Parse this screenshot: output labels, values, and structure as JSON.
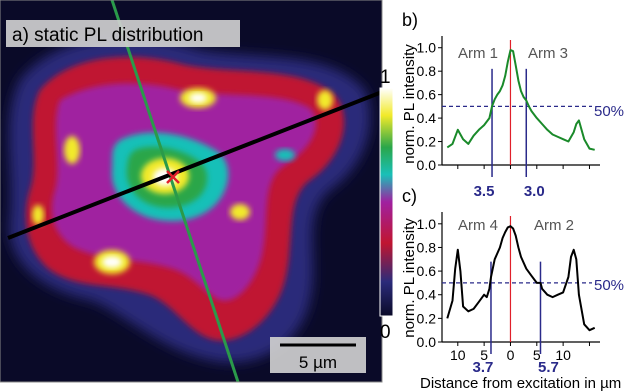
{
  "panel_a": {
    "label": "a) static PL distribution",
    "colorbar_max": "1",
    "colorbar_min": "0",
    "scalebar_label": "5 µm",
    "colormap": [
      "#0a0a28",
      "#2b2b7a",
      "#c01530",
      "#a020a0",
      "#19c0b8",
      "#2aa64a",
      "#f2ea2a",
      "#ffffff"
    ],
    "marker_color": "#e0202a",
    "line_black": "#000000",
    "line_green": "#2a9a4a"
  },
  "ylabel": "norm. PL intensity",
  "xlabel": "Distance from excitation in µm",
  "half_max_label": "50%",
  "chart_data": [
    {
      "type": "line",
      "panel": "b)",
      "arm_left": "Arm 1",
      "arm_right": "Arm 3",
      "ylabel": "norm. PL intensity",
      "yticks": [
        "0.0",
        "0.2",
        "0.4",
        "0.6",
        "0.8",
        "1.0"
      ],
      "ylim": [
        0,
        1.1
      ],
      "xlim": [
        -13,
        17
      ],
      "color": "#1a8a2a",
      "series": [
        {
          "x": [
            -12,
            -11,
            -10,
            -9,
            -8,
            -7,
            -6,
            -5,
            -4,
            -3.5,
            -3,
            -2.5,
            -2,
            -1.5,
            -1,
            -0.5,
            0,
            0.5,
            1,
            1.5,
            2,
            2.5,
            3,
            3.5,
            4,
            5,
            6,
            7,
            8,
            9,
            10,
            11,
            12,
            12.5,
            13,
            14,
            15,
            16
          ],
          "y": [
            0.15,
            0.18,
            0.3,
            0.22,
            0.18,
            0.25,
            0.3,
            0.34,
            0.4,
            0.5,
            0.56,
            0.6,
            0.63,
            0.68,
            0.76,
            0.88,
            0.98,
            0.97,
            0.85,
            0.72,
            0.63,
            0.58,
            0.55,
            0.5,
            0.46,
            0.4,
            0.35,
            0.3,
            0.26,
            0.24,
            0.22,
            0.2,
            0.28,
            0.35,
            0.38,
            0.22,
            0.14,
            0.13
          ]
        }
      ],
      "fwhm_left": "3.5",
      "fwhm_right": "3.0",
      "fwhm_x": [
        -3.5,
        3.0
      ],
      "half_max": 0.5
    },
    {
      "type": "line",
      "panel": "c)",
      "arm_left": "Arm 4",
      "arm_right": "Arm 2",
      "ylabel": "norm. PL intensity",
      "yticks": [
        "0.0",
        "0.2",
        "0.4",
        "0.6",
        "0.8",
        "1.0"
      ],
      "xticks": [
        "10",
        "5",
        "0",
        "5",
        "10"
      ],
      "xtick_values": [
        -10,
        -5,
        0,
        5,
        10
      ],
      "ylim": [
        0,
        1.1
      ],
      "xlim": [
        -13,
        17
      ],
      "color": "#000000",
      "series": [
        {
          "x": [
            -12,
            -11,
            -10.5,
            -10,
            -9.5,
            -9,
            -8,
            -7,
            -6,
            -5,
            -4.5,
            -4,
            -3.7,
            -3,
            -2,
            -1.5,
            -1,
            -0.5,
            0,
            0.5,
            1,
            1.5,
            2,
            3,
            4,
            5,
            5.7,
            6,
            7,
            8,
            9,
            10,
            11,
            11.5,
            12,
            12.5,
            13,
            14,
            15,
            16
          ],
          "y": [
            0.2,
            0.35,
            0.62,
            0.78,
            0.6,
            0.3,
            0.26,
            0.28,
            0.34,
            0.4,
            0.38,
            0.45,
            0.55,
            0.7,
            0.8,
            0.88,
            0.93,
            0.97,
            0.98,
            0.96,
            0.9,
            0.8,
            0.72,
            0.62,
            0.56,
            0.5,
            0.5,
            0.45,
            0.4,
            0.38,
            0.4,
            0.42,
            0.55,
            0.72,
            0.78,
            0.7,
            0.4,
            0.15,
            0.1,
            0.12
          ]
        }
      ],
      "fwhm_left": "3.7",
      "fwhm_right": "5.7",
      "fwhm_x": [
        -3.7,
        5.7
      ],
      "half_max": 0.5
    }
  ]
}
